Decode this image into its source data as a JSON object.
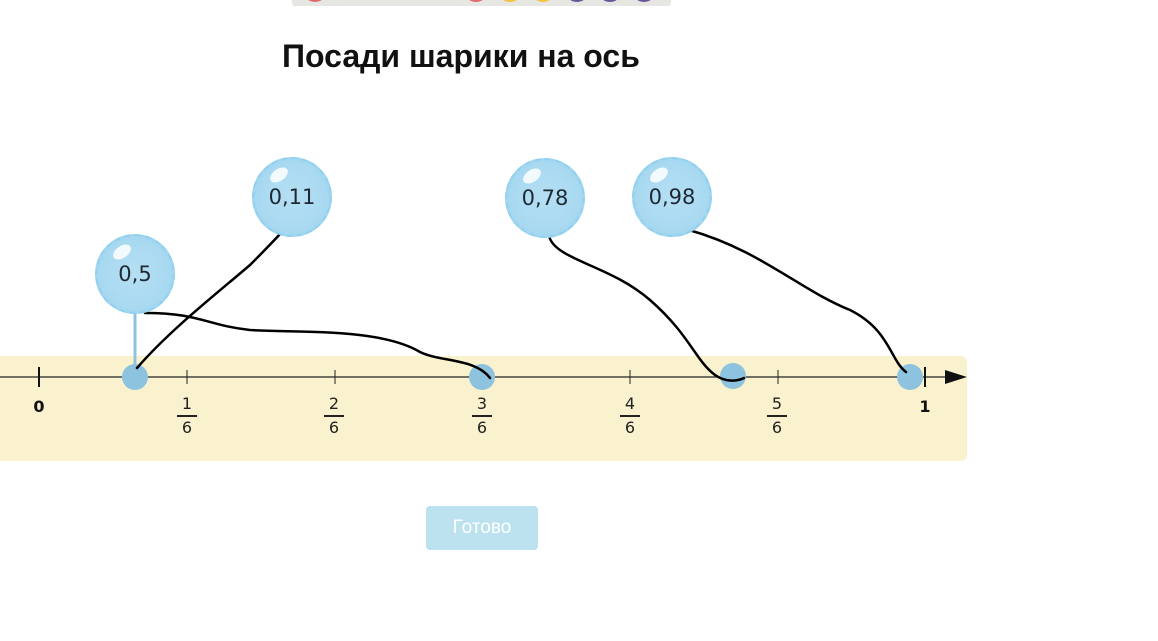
{
  "top_strip": {
    "dot_colors": [
      "#e06b6f",
      "#e06b6f",
      "#f5c33b",
      "#f5c33b",
      "#6a559a",
      "#6a559a",
      "#6a559a"
    ]
  },
  "title": "Посади шарики на ось",
  "axis": {
    "start_label": "0",
    "end_label": "1",
    "fractions": [
      {
        "num": "1",
        "den": "6"
      },
      {
        "num": "2",
        "den": "6"
      },
      {
        "num": "3",
        "den": "6"
      },
      {
        "num": "4",
        "den": "6"
      },
      {
        "num": "5",
        "den": "6"
      }
    ]
  },
  "balloons": [
    {
      "label": "0,5"
    },
    {
      "label": "0,11"
    },
    {
      "label": "0,78"
    },
    {
      "label": "0,98"
    }
  ],
  "done_button": "Готово",
  "colors": {
    "band": "#faf2cf",
    "balloon": "#a8d9f1",
    "point": "#8ec3e0",
    "button": "#bde2ef"
  }
}
